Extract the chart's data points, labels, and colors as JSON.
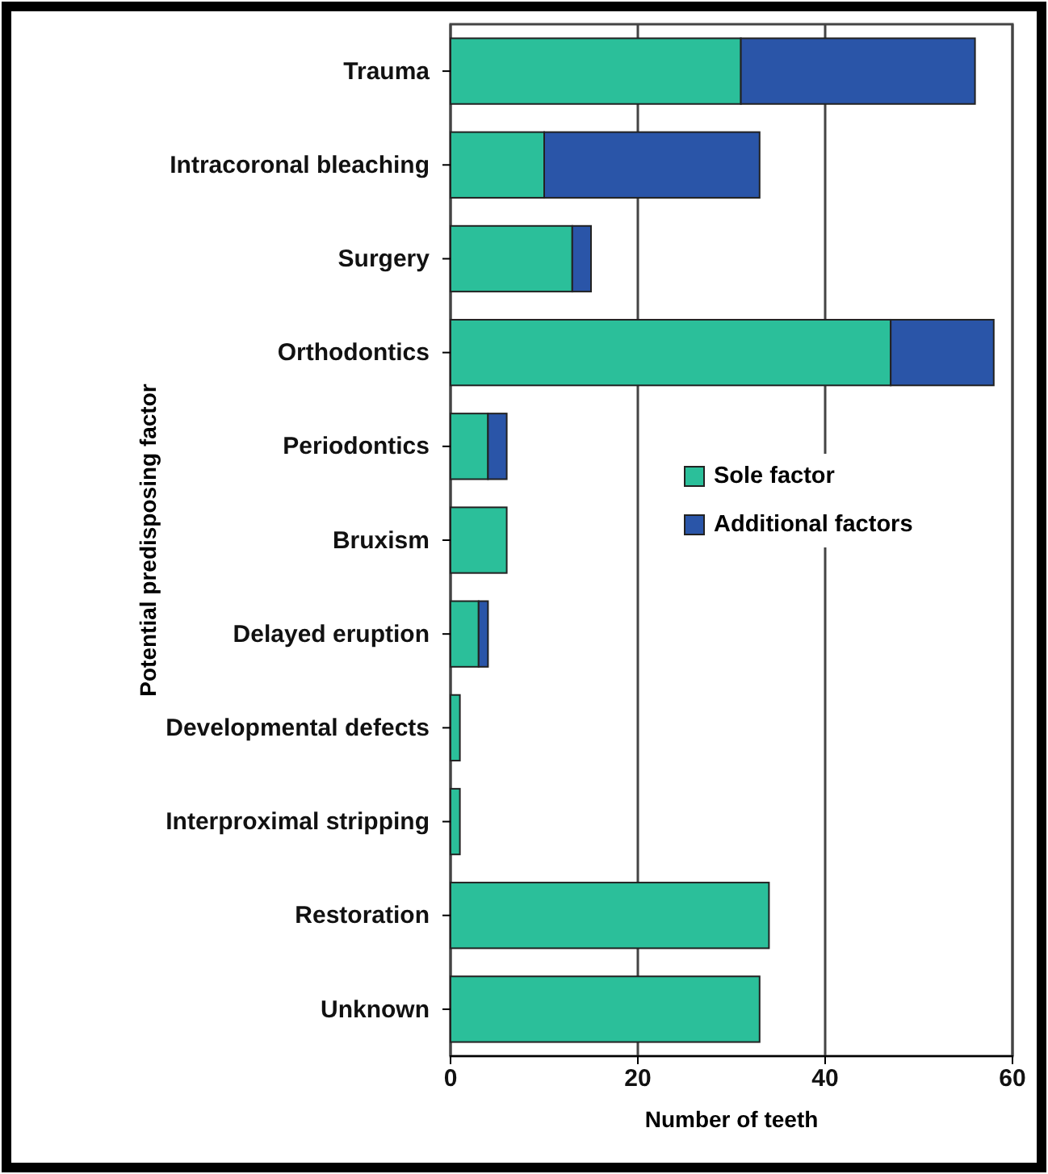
{
  "chart_data": {
    "type": "bar",
    "orientation": "horizontal",
    "stacked": true,
    "ylabel": "Potential predisposing factor",
    "xlabel": "Number of teeth",
    "categories": [
      "Trauma",
      "Intracoronal bleaching",
      "Surgery",
      "Orthodontics",
      "Periodontics",
      "Bruxism",
      "Delayed eruption",
      "Developmental defects",
      "Interproximal stripping",
      "Restoration",
      "Unknown"
    ],
    "series": [
      {
        "name": "Sole factor",
        "color": "#2bbf9a",
        "values": [
          31,
          10,
          13,
          47,
          4,
          6,
          3,
          1,
          1,
          34,
          33
        ]
      },
      {
        "name": "Additional factors",
        "color": "#2a55a8",
        "values": [
          25,
          23,
          2,
          11,
          2,
          0,
          1,
          0,
          0,
          0,
          0
        ]
      }
    ],
    "xlim": [
      0,
      60
    ],
    "xticks": [
      0,
      20,
      40,
      60
    ],
    "grid": "x",
    "legend": "right"
  }
}
